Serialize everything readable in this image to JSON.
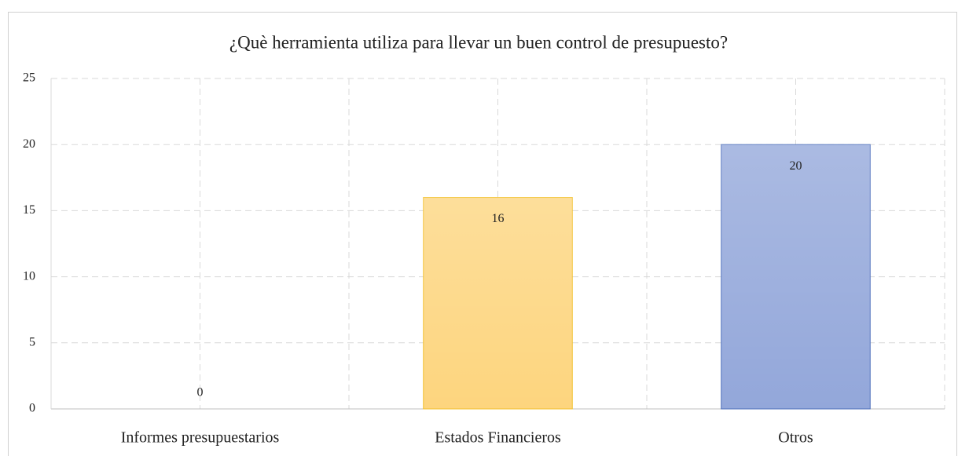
{
  "chart_data": {
    "type": "bar",
    "title": "¿Què herramienta utiliza para llevar un buen control de presupuesto?",
    "categories": [
      "Informes presupuestarios",
      "Estados Financieros",
      "Otros"
    ],
    "values": [
      0,
      16,
      20
    ],
    "colors": [
      null,
      "#fdd57e",
      "#93a7da"
    ],
    "edge_colors": [
      null,
      "#f2c02c",
      "#4d6fbb"
    ],
    "ylim": [
      0,
      25
    ],
    "yticks": [
      0,
      5,
      10,
      15,
      20,
      25
    ],
    "grid": true
  }
}
